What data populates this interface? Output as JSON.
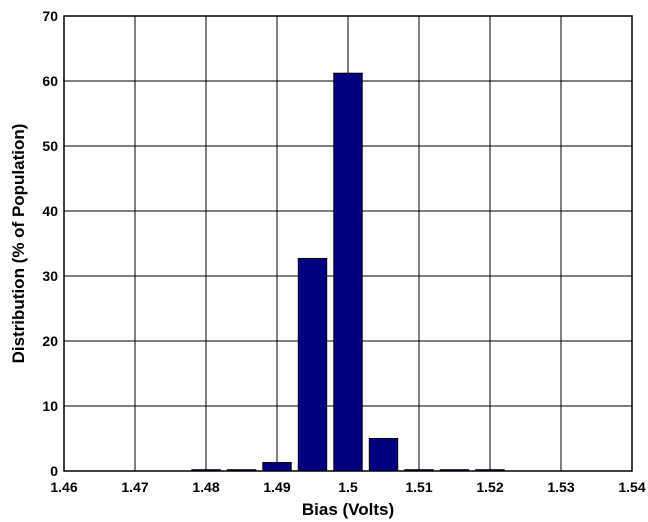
{
  "chart_data": {
    "type": "bar",
    "title": "",
    "xlabel": "Bias (Volts)",
    "ylabel": "Distribution (% of Population)",
    "xlim": [
      1.46,
      1.54
    ],
    "ylim": [
      0,
      70
    ],
    "xticks": [
      1.46,
      1.47,
      1.48,
      1.49,
      1.5,
      1.51,
      1.52,
      1.53,
      1.54
    ],
    "xtick_labels": [
      "1.46",
      "1.47",
      "1.48",
      "1.49",
      "1.5",
      "1.51",
      "1.52",
      "1.53",
      "1.54"
    ],
    "yticks": [
      0,
      10,
      20,
      30,
      40,
      50,
      60,
      70
    ],
    "ytick_labels": [
      "0",
      "10",
      "20",
      "30",
      "40",
      "50",
      "60",
      "70"
    ],
    "bar_width": 0.004,
    "x": [
      1.48,
      1.485,
      1.49,
      1.495,
      1.5,
      1.505,
      1.51,
      1.515,
      1.52
    ],
    "values": [
      0.2,
      0.2,
      1.3,
      32.7,
      61.2,
      5.0,
      0.2,
      0.2,
      0.2
    ],
    "grid": true,
    "colors": {
      "bar": "#000080",
      "grid": "#000000",
      "background": "#ffffff"
    }
  }
}
